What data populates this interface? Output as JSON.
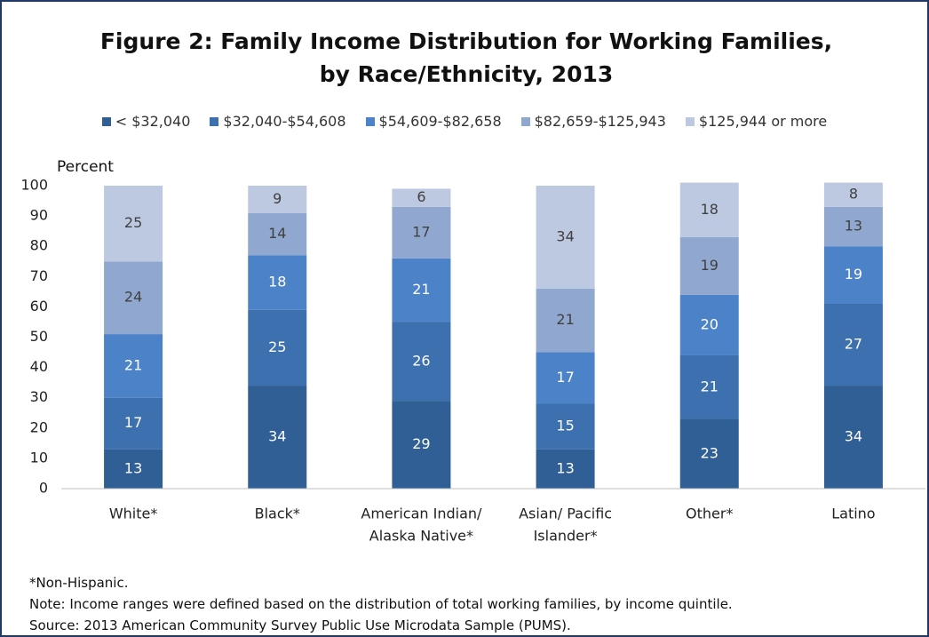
{
  "chart_data": {
    "type": "stacked_bar",
    "title": "Figure 2: Family Income Distribution for Working Families, by Race/Ethnicity, 2013",
    "ylabel": "Percent",
    "categories": [
      [
        "White*"
      ],
      [
        "Black*"
      ],
      [
        "American Indian/",
        "Alaska Native*"
      ],
      [
        "Asian/  Pacific",
        "Islander*"
      ],
      [
        "Other*"
      ],
      [
        "Latino"
      ]
    ],
    "series": [
      {
        "name": "< $32,040",
        "color": "#2f5f95",
        "label_color": "#ffffff",
        "values": [
          13,
          34,
          29,
          13,
          23,
          34
        ]
      },
      {
        "name": "$32,040-$54,608",
        "color": "#3d70ae",
        "label_color": "#ffffff",
        "values": [
          17,
          25,
          26,
          15,
          21,
          27
        ]
      },
      {
        "name": "$54,609-$82,658",
        "color": "#4b82c8",
        "label_color": "#ffffff",
        "values": [
          21,
          18,
          21,
          17,
          20,
          19
        ]
      },
      {
        "name": "$82,659-$125,943",
        "color": "#90a7d0",
        "label_color": "#404040",
        "values": [
          24,
          14,
          17,
          21,
          19,
          13
        ]
      },
      {
        "name": "$125,944 or more",
        "color": "#bdc9e1",
        "label_color": "#404040",
        "values": [
          25,
          9,
          6,
          34,
          18,
          8
        ]
      }
    ],
    "ylim": [
      0,
      100
    ],
    "yticks": [
      0,
      10,
      20,
      30,
      40,
      50,
      60,
      70,
      80,
      90,
      100
    ],
    "grid": false,
    "legend": "top",
    "notes": [
      "*Non-Hispanic.",
      "Note: Income ranges were defined based on the distribution of total working families, by income quintile.",
      "Source: 2013 American Community Survey Public Use Microdata Sample (PUMS)."
    ]
  }
}
